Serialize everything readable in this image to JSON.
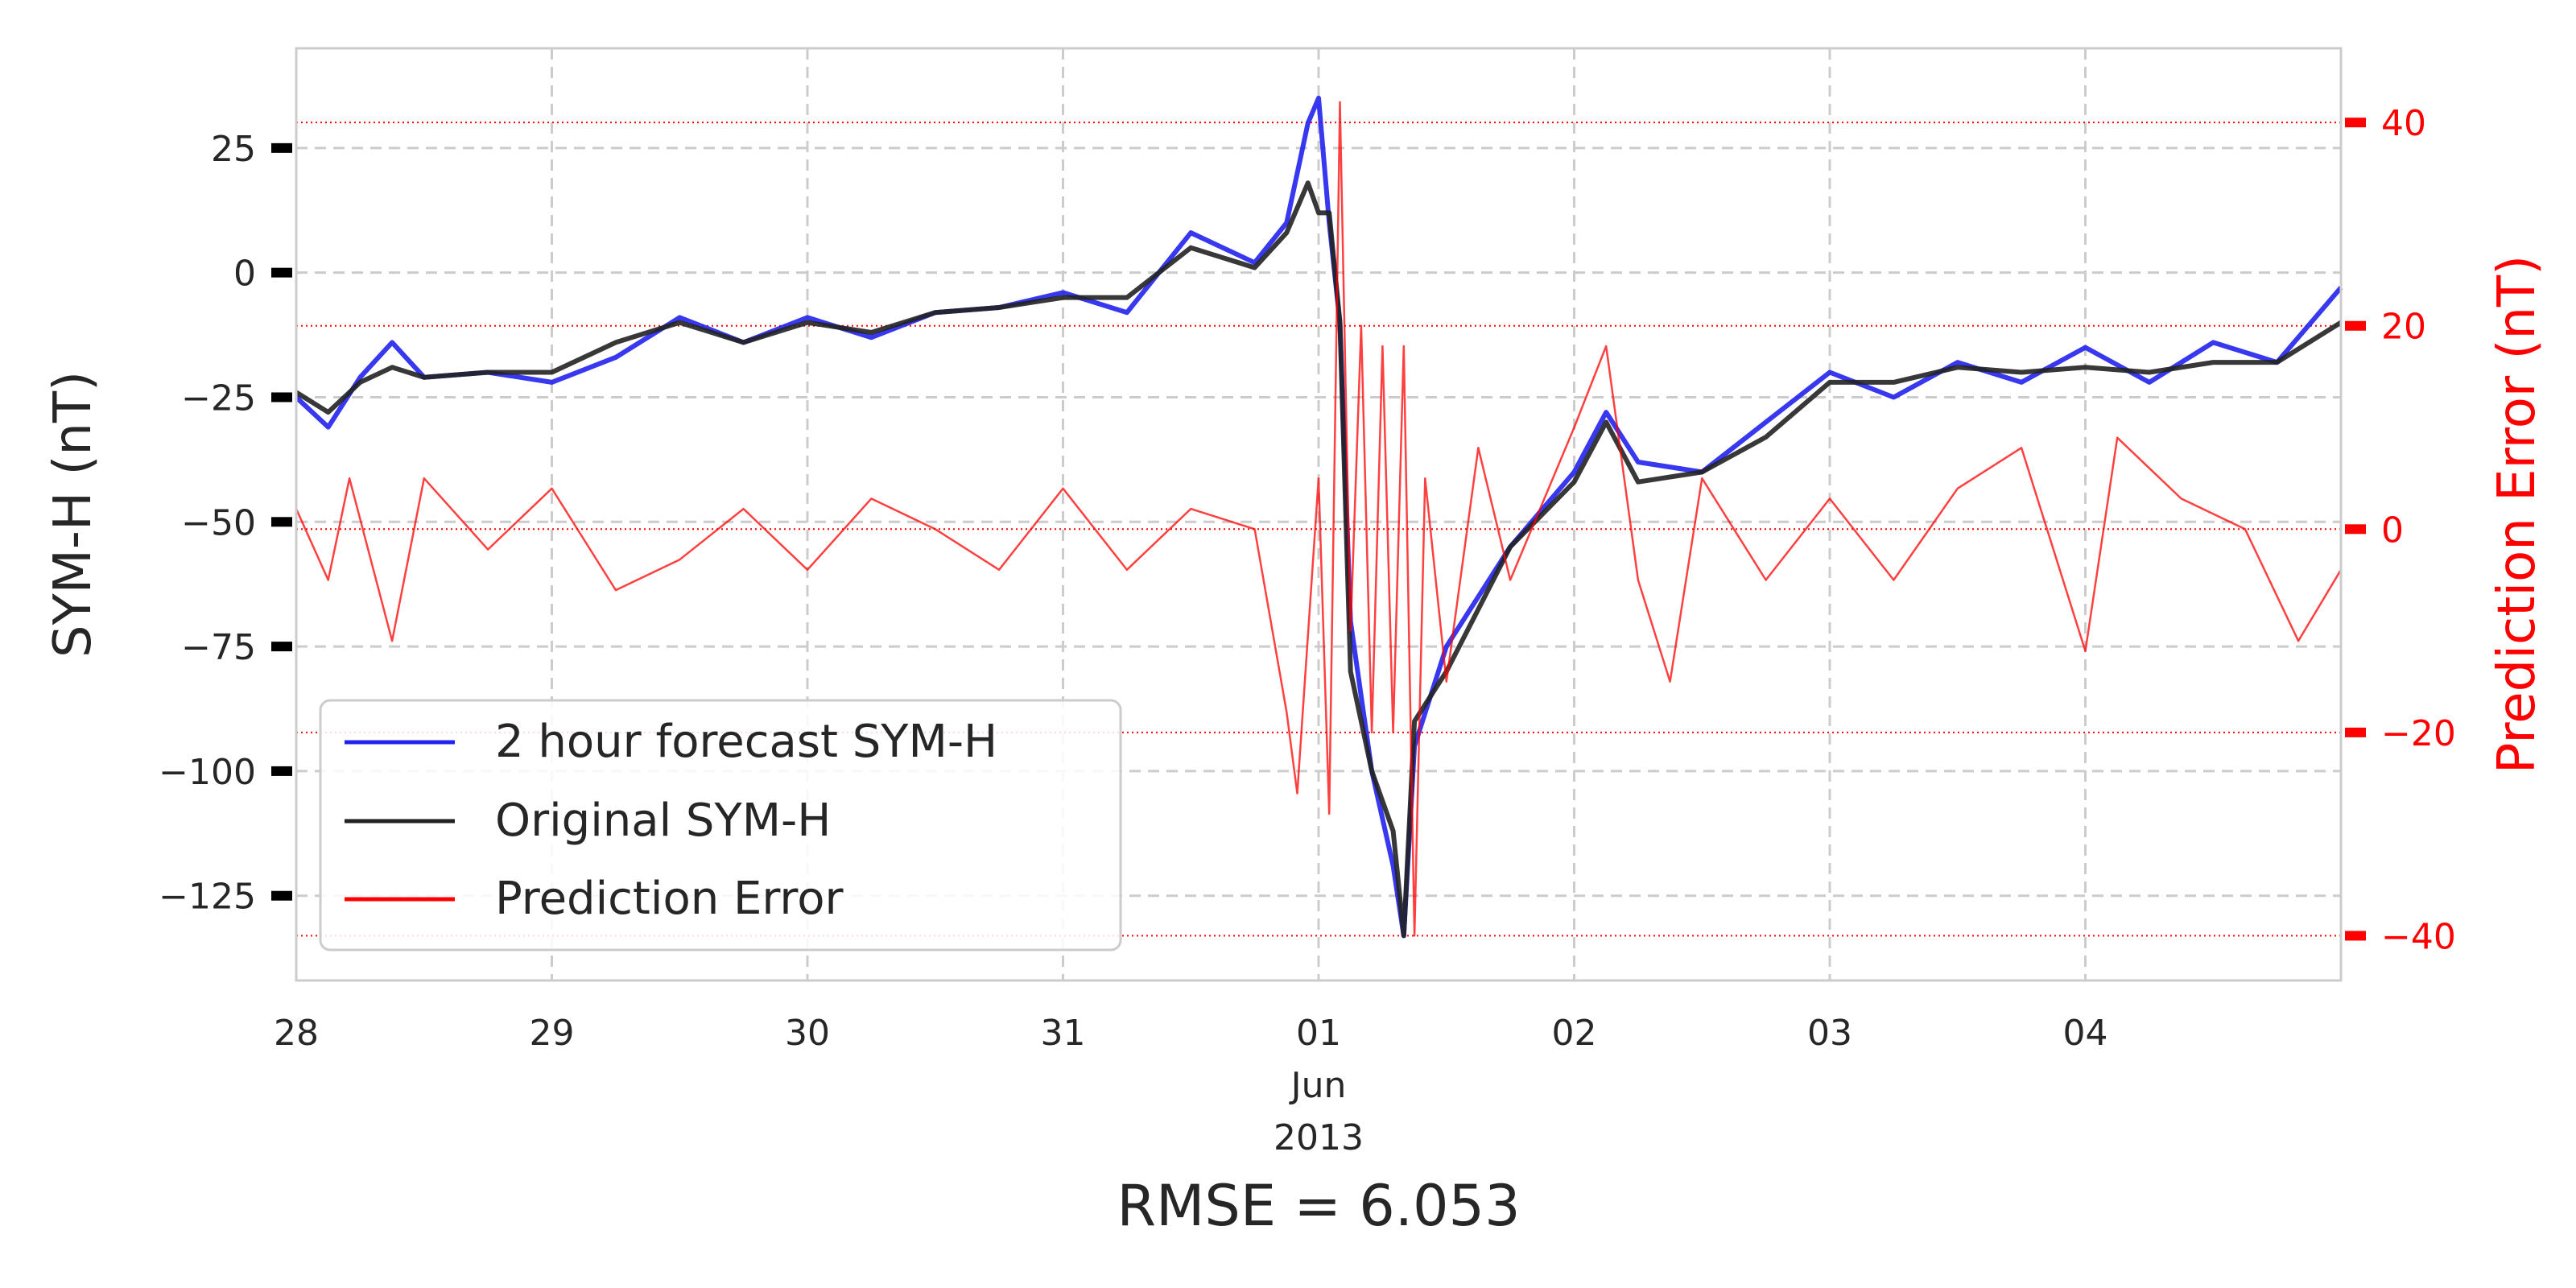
{
  "chart_data": {
    "type": "line",
    "title": "",
    "xlabel_lines": [
      "Jun",
      "2013"
    ],
    "ylabel_left": "SYM-H (nT)",
    "ylabel_right": "Prediction Error (nT)",
    "x_range": [
      "2013-05-28 00:00",
      "2013-06-05 00:00"
    ],
    "x_ticks": [
      {
        "date": "2013-05-28",
        "label": "28"
      },
      {
        "date": "2013-05-29",
        "label": "29"
      },
      {
        "date": "2013-05-30",
        "label": "30"
      },
      {
        "date": "2013-05-31",
        "label": "31"
      },
      {
        "date": "2013-06-01",
        "label": "01"
      },
      {
        "date": "2013-06-02",
        "label": "02"
      },
      {
        "date": "2013-06-03",
        "label": "03"
      },
      {
        "date": "2013-06-04",
        "label": "04"
      }
    ],
    "ylim_left": [
      -142,
      45
    ],
    "yticks_left": [
      {
        "value": 25,
        "label": "25"
      },
      {
        "value": 0,
        "label": "0"
      },
      {
        "value": -25,
        "label": "−25"
      },
      {
        "value": -50,
        "label": "−50"
      },
      {
        "value": -75,
        "label": "−75"
      },
      {
        "value": -100,
        "label": "−100"
      },
      {
        "value": -125,
        "label": "−125"
      }
    ],
    "ylim_right": [
      -44.4,
      47.3
    ],
    "yticks_right": [
      {
        "value": 40,
        "label": "40"
      },
      {
        "value": 20,
        "label": "20"
      },
      {
        "value": 0,
        "label": "0"
      },
      {
        "value": -20,
        "label": "−20"
      },
      {
        "value": -40,
        "label": "−40"
      }
    ],
    "grid": true,
    "legend_position": "lower-left",
    "footer": "RMSE = 6.053",
    "colors": {
      "forecast": "#2222ee",
      "original": "#222222",
      "error": "#ff0000",
      "grid": "#cccccc",
      "axis": "#cccccc"
    },
    "series": [
      {
        "name": "2 hour forecast SYM-H",
        "axis": "left",
        "points": [
          [
            "2013-05-28 00:00",
            -25
          ],
          [
            "2013-05-28 03:00",
            -31
          ],
          [
            "2013-05-28 06:00",
            -21
          ],
          [
            "2013-05-28 09:00",
            -14
          ],
          [
            "2013-05-28 12:00",
            -21
          ],
          [
            "2013-05-28 18:00",
            -20
          ],
          [
            "2013-05-29 00:00",
            -22
          ],
          [
            "2013-05-29 06:00",
            -17
          ],
          [
            "2013-05-29 12:00",
            -9
          ],
          [
            "2013-05-29 18:00",
            -14
          ],
          [
            "2013-05-30 00:00",
            -9
          ],
          [
            "2013-05-30 06:00",
            -13
          ],
          [
            "2013-05-30 12:00",
            -8
          ],
          [
            "2013-05-30 18:00",
            -7
          ],
          [
            "2013-05-31 00:00",
            -4
          ],
          [
            "2013-05-31 06:00",
            -8
          ],
          [
            "2013-05-31 12:00",
            8
          ],
          [
            "2013-05-31 18:00",
            2
          ],
          [
            "2013-05-31 21:00",
            10
          ],
          [
            "2013-05-31 23:00",
            30
          ],
          [
            "2013-06-01 00:00",
            35
          ],
          [
            "2013-06-01 01:00",
            10
          ],
          [
            "2013-06-01 02:00",
            -10
          ],
          [
            "2013-06-01 03:00",
            -70
          ],
          [
            "2013-06-01 05:00",
            -100
          ],
          [
            "2013-06-01 07:00",
            -119
          ],
          [
            "2013-06-01 08:00",
            -133
          ],
          [
            "2013-06-01 09:00",
            -95
          ],
          [
            "2013-06-01 12:00",
            -75
          ],
          [
            "2013-06-01 18:00",
            -55
          ],
          [
            "2013-06-02 00:00",
            -40
          ],
          [
            "2013-06-02 03:00",
            -28
          ],
          [
            "2013-06-02 06:00",
            -38
          ],
          [
            "2013-06-02 12:00",
            -40
          ],
          [
            "2013-06-02 18:00",
            -30
          ],
          [
            "2013-06-03 00:00",
            -20
          ],
          [
            "2013-06-03 06:00",
            -25
          ],
          [
            "2013-06-03 12:00",
            -18
          ],
          [
            "2013-06-03 18:00",
            -22
          ],
          [
            "2013-06-04 00:00",
            -15
          ],
          [
            "2013-06-04 06:00",
            -22
          ],
          [
            "2013-06-04 12:00",
            -14
          ],
          [
            "2013-06-04 18:00",
            -18
          ],
          [
            "2013-06-05 00:00",
            -3
          ]
        ]
      },
      {
        "name": "Original SYM-H",
        "axis": "left",
        "points": [
          [
            "2013-05-28 00:00",
            -24
          ],
          [
            "2013-05-28 03:00",
            -28
          ],
          [
            "2013-05-28 06:00",
            -22
          ],
          [
            "2013-05-28 09:00",
            -19
          ],
          [
            "2013-05-28 12:00",
            -21
          ],
          [
            "2013-05-28 18:00",
            -20
          ],
          [
            "2013-05-29 00:00",
            -20
          ],
          [
            "2013-05-29 06:00",
            -14
          ],
          [
            "2013-05-29 12:00",
            -10
          ],
          [
            "2013-05-29 18:00",
            -14
          ],
          [
            "2013-05-30 00:00",
            -10
          ],
          [
            "2013-05-30 06:00",
            -12
          ],
          [
            "2013-05-30 12:00",
            -8
          ],
          [
            "2013-05-30 18:00",
            -7
          ],
          [
            "2013-05-31 00:00",
            -5
          ],
          [
            "2013-05-31 06:00",
            -5
          ],
          [
            "2013-05-31 12:00",
            5
          ],
          [
            "2013-05-31 18:00",
            1
          ],
          [
            "2013-05-31 21:00",
            8
          ],
          [
            "2013-05-31 23:00",
            18
          ],
          [
            "2013-06-01 00:00",
            12
          ],
          [
            "2013-06-01 01:00",
            12
          ],
          [
            "2013-06-01 02:00",
            -10
          ],
          [
            "2013-06-01 03:00",
            -80
          ],
          [
            "2013-06-01 05:00",
            -100
          ],
          [
            "2013-06-01 07:00",
            -112
          ],
          [
            "2013-06-01 08:00",
            -133
          ],
          [
            "2013-06-01 09:00",
            -90
          ],
          [
            "2013-06-01 12:00",
            -80
          ],
          [
            "2013-06-01 18:00",
            -55
          ],
          [
            "2013-06-02 00:00",
            -42
          ],
          [
            "2013-06-02 03:00",
            -30
          ],
          [
            "2013-06-02 06:00",
            -42
          ],
          [
            "2013-06-02 12:00",
            -40
          ],
          [
            "2013-06-02 18:00",
            -33
          ],
          [
            "2013-06-03 00:00",
            -22
          ],
          [
            "2013-06-03 06:00",
            -22
          ],
          [
            "2013-06-03 12:00",
            -19
          ],
          [
            "2013-06-03 18:00",
            -20
          ],
          [
            "2013-06-04 00:00",
            -19
          ],
          [
            "2013-06-04 06:00",
            -20
          ],
          [
            "2013-06-04 12:00",
            -18
          ],
          [
            "2013-06-04 18:00",
            -18
          ],
          [
            "2013-06-05 00:00",
            -10
          ]
        ]
      },
      {
        "name": "Prediction Error",
        "axis": "right",
        "points": [
          [
            "2013-05-28 00:00",
            2
          ],
          [
            "2013-05-28 03:00",
            -5
          ],
          [
            "2013-05-28 05:00",
            5
          ],
          [
            "2013-05-28 09:00",
            -11
          ],
          [
            "2013-05-28 12:00",
            5
          ],
          [
            "2013-05-28 18:00",
            -2
          ],
          [
            "2013-05-29 00:00",
            4
          ],
          [
            "2013-05-29 06:00",
            -6
          ],
          [
            "2013-05-29 12:00",
            -3
          ],
          [
            "2013-05-29 18:00",
            2
          ],
          [
            "2013-05-30 00:00",
            -4
          ],
          [
            "2013-05-30 06:00",
            3
          ],
          [
            "2013-05-30 12:00",
            0
          ],
          [
            "2013-05-30 18:00",
            -4
          ],
          [
            "2013-05-31 00:00",
            4
          ],
          [
            "2013-05-31 06:00",
            -4
          ],
          [
            "2013-05-31 12:00",
            2
          ],
          [
            "2013-05-31 18:00",
            0
          ],
          [
            "2013-05-31 21:00",
            -18
          ],
          [
            "2013-05-31 22:00",
            -26
          ],
          [
            "2013-06-01 00:00",
            5
          ],
          [
            "2013-06-01 01:00",
            -28
          ],
          [
            "2013-06-01 02:00",
            42
          ],
          [
            "2013-06-01 03:00",
            -10
          ],
          [
            "2013-06-01 04:00",
            20
          ],
          [
            "2013-06-01 05:00",
            -20
          ],
          [
            "2013-06-01 06:00",
            18
          ],
          [
            "2013-06-01 07:00",
            -20
          ],
          [
            "2013-06-01 08:00",
            18
          ],
          [
            "2013-06-01 09:00",
            -40
          ],
          [
            "2013-06-01 10:00",
            5
          ],
          [
            "2013-06-01 12:00",
            -15
          ],
          [
            "2013-06-01 15:00",
            8
          ],
          [
            "2013-06-01 18:00",
            -5
          ],
          [
            "2013-06-02 00:00",
            10
          ],
          [
            "2013-06-02 03:00",
            18
          ],
          [
            "2013-06-02 06:00",
            -5
          ],
          [
            "2013-06-02 09:00",
            -15
          ],
          [
            "2013-06-02 12:00",
            5
          ],
          [
            "2013-06-02 18:00",
            -5
          ],
          [
            "2013-06-03 00:00",
            3
          ],
          [
            "2013-06-03 06:00",
            -5
          ],
          [
            "2013-06-03 12:00",
            4
          ],
          [
            "2013-06-03 18:00",
            8
          ],
          [
            "2013-06-04 00:00",
            -12
          ],
          [
            "2013-06-04 03:00",
            9
          ],
          [
            "2013-06-04 09:00",
            3
          ],
          [
            "2013-06-04 15:00",
            0
          ],
          [
            "2013-06-04 20:00",
            -11
          ],
          [
            "2013-06-05 00:00",
            -4
          ]
        ]
      }
    ]
  },
  "legend": {
    "items": [
      "2 hour forecast SYM-H",
      "Original SYM-H",
      "Prediction Error"
    ]
  }
}
